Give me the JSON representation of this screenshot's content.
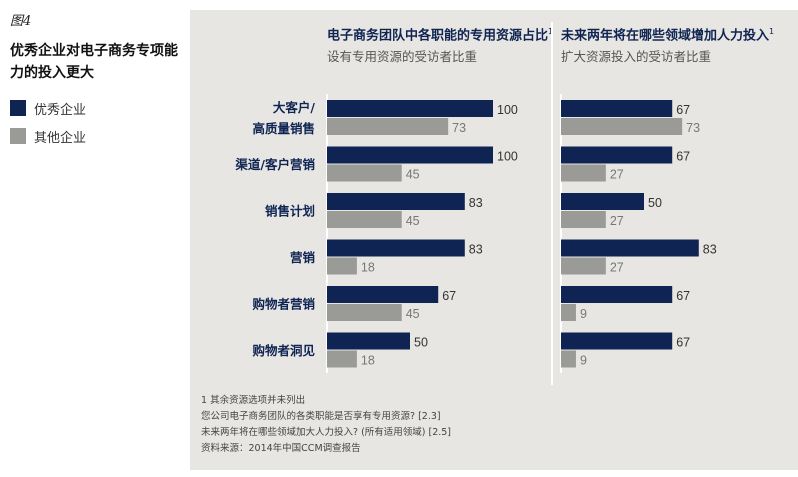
{
  "figure_label": "图4",
  "title": "优秀企业对电子商务专项能力的投入更大",
  "legend": [
    {
      "label": "优秀企业",
      "color": "#0f2452"
    },
    {
      "label": "其他企业",
      "color": "#9a9a96"
    }
  ],
  "colors": {
    "top": "#0f2452",
    "other": "#9a9a96",
    "panel": "#e7e6e2"
  },
  "chart_data": [
    {
      "type": "bar",
      "orientation": "horizontal",
      "title": "电子商务团队中各职能的专用资源占比",
      "title_footnote": "1",
      "subtitle": "设有专用资源的受访者比重",
      "categories": [
        "大客户/高质量销售",
        "渠道/客户营销",
        "销售计划",
        "营销",
        "购物者营销",
        "购物者洞见"
      ],
      "series": [
        {
          "name": "优秀企业",
          "values": [
            100,
            100,
            83,
            83,
            67,
            50
          ]
        },
        {
          "name": "其他企业",
          "values": [
            73,
            45,
            45,
            18,
            45,
            18
          ]
        }
      ],
      "xlim": [
        0,
        100
      ]
    },
    {
      "type": "bar",
      "orientation": "horizontal",
      "title": "未来两年将在哪些领域增加人力投入",
      "title_footnote": "1",
      "subtitle": "扩大资源投入的受访者比重",
      "categories": [
        "大客户/高质量销售",
        "渠道/客户营销",
        "销售计划",
        "营销",
        "购物者营销",
        "购物者洞见"
      ],
      "series": [
        {
          "name": "优秀企业",
          "values": [
            67,
            67,
            50,
            83,
            67,
            67
          ]
        },
        {
          "name": "其他企业",
          "values": [
            73,
            27,
            27,
            27,
            9,
            9
          ]
        }
      ],
      "xlim": [
        0,
        100
      ]
    }
  ],
  "category_display": [
    [
      "大客户/",
      "高质量销售"
    ],
    [
      "渠道/客户营销"
    ],
    [
      "销售计划"
    ],
    [
      "营销"
    ],
    [
      "购物者营销"
    ],
    [
      "购物者洞见"
    ]
  ],
  "footnotes": [
    "1 其余资源选项并未列出",
    "您公司电子商务团队的各类职能是否享有专用资源? [2.3]",
    "未来两年将在哪些领域加大人力投入? (所有适用领域) [2.5]",
    "资料来源：2014年中国CCM调查报告"
  ]
}
